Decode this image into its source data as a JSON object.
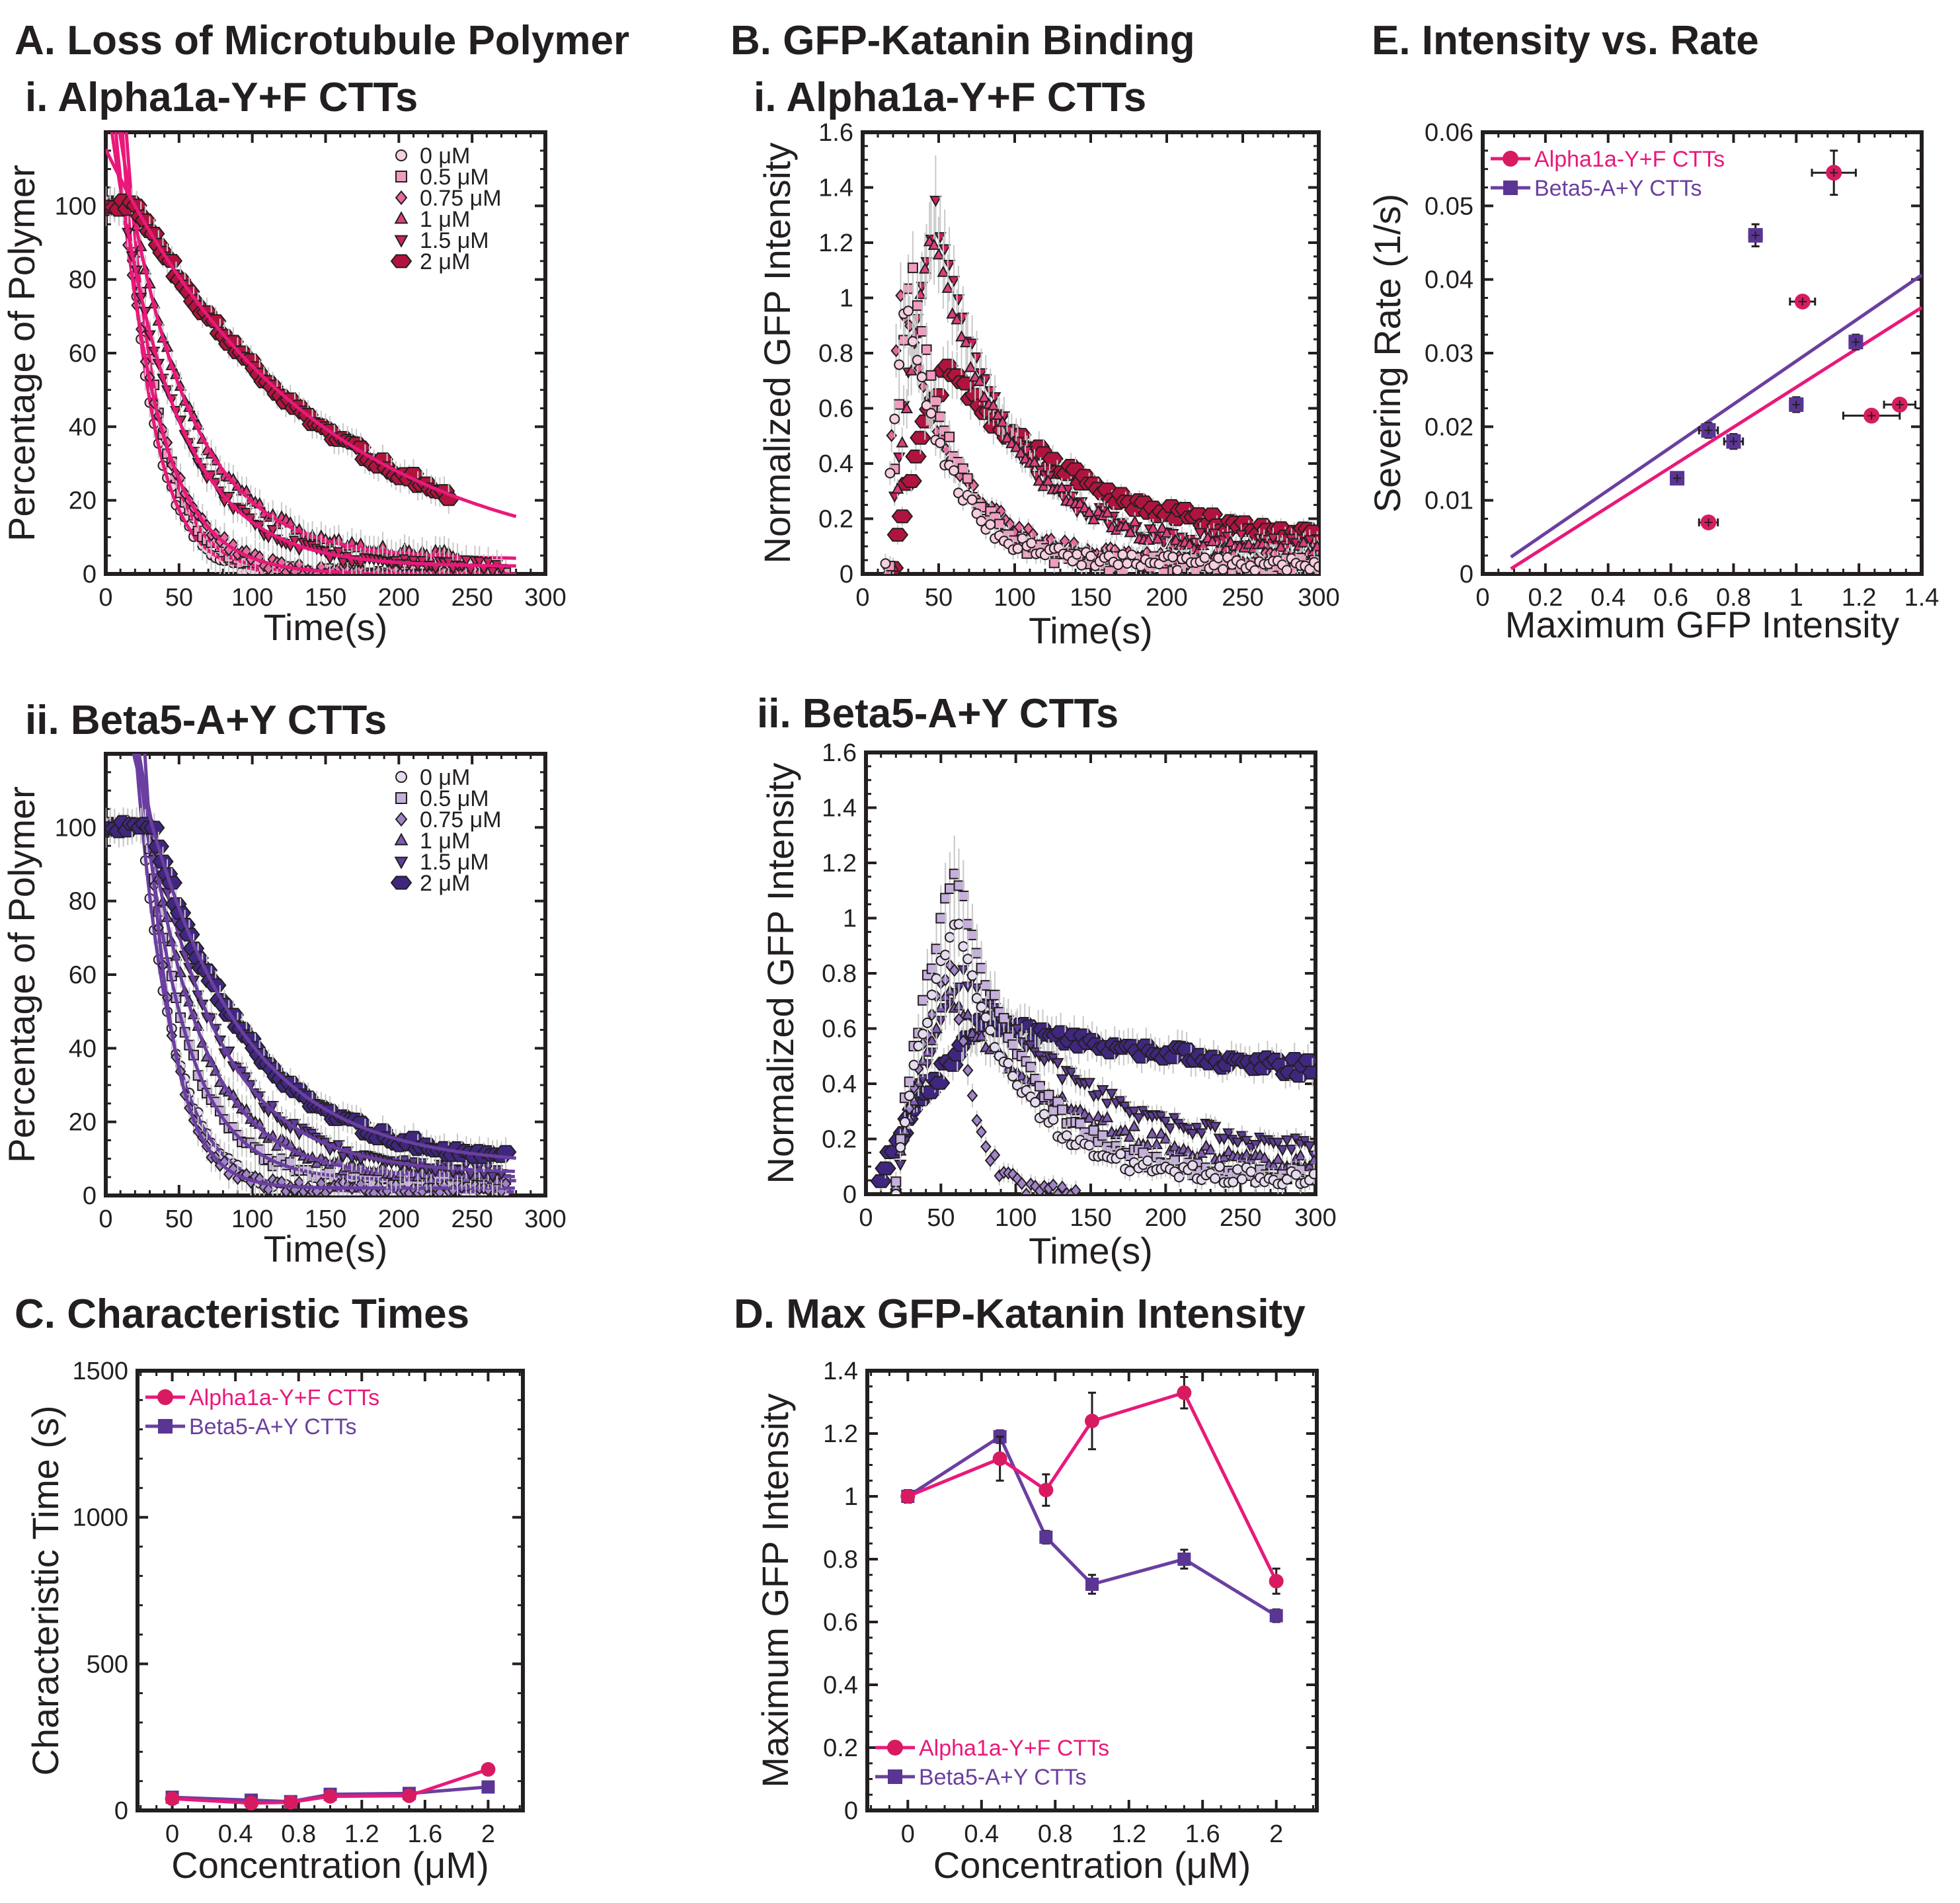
{
  "headings": {
    "A": "A. Loss of Microtubule Polymer",
    "Ai": "i. Alpha1a-Y+F CTTs",
    "Aii": "ii. Beta5-A+Y CTTs",
    "B": "B. GFP-Katanin Binding",
    "Bi": "i. Alpha1a-Y+F CTTs",
    "Bii": "ii. Beta5-A+Y CTTs",
    "C": "C. Characteristic Times",
    "D": "D. Max GFP-Katanin Intensity",
    "E": "E. Intensity vs. Rate"
  },
  "colors": {
    "alpha_line": "#e8197a",
    "beta_line": "#6a3fa0",
    "alpha_marker": "#d81b60",
    "beta_marker": "#5a3594",
    "alpha_shades": [
      "#f6cfe0",
      "#f09cc0",
      "#e56a9e",
      "#dd3f7e",
      "#cc2260",
      "#b0143e"
    ],
    "beta_shades": [
      "#e6dcef",
      "#c5afdc",
      "#a184c8",
      "#7f5cb1",
      "#5e3d98",
      "#3f2780"
    ],
    "error_bar": "#c8c8c8",
    "axis": "#231f20"
  },
  "chart_data": [
    {
      "id": "Ai",
      "type": "scatter",
      "title": "i. Alpha1a-Y+F CTTs",
      "xlabel": "Time(s)",
      "ylabel": "Percentage of Polymer",
      "xlim": [
        0,
        300
      ],
      "ylim": [
        0,
        120
      ],
      "xticks": [
        "0",
        "50",
        "100",
        "150",
        "200",
        "250",
        "300"
      ],
      "yticks": [
        "0",
        "20",
        "40",
        "60",
        "80",
        "100"
      ],
      "legend_position": "top-right",
      "series": [
        {
          "name": "0 μM",
          "marker": "circle",
          "tau": 20,
          "delay": 15,
          "tmax": 275,
          "plateau": 0
        },
        {
          "name": "0.5 μM",
          "marker": "square",
          "tau": 22,
          "delay": 18,
          "tmax": 275,
          "plateau": 0
        },
        {
          "name": "0.75 μM",
          "marker": "diamond",
          "tau": 28,
          "delay": 12,
          "tmax": 270,
          "plateau": 0
        },
        {
          "name": "1 μM",
          "marker": "triangle-up",
          "tau": 45,
          "delay": 18,
          "tmax": 240,
          "plateau": 4
        },
        {
          "name": "1.5 μM",
          "marker": "triangle-down",
          "tau": 42,
          "delay": 12,
          "tmax": 270,
          "plateau": 2
        },
        {
          "name": "2 μM",
          "marker": "hexagon",
          "tau": 140,
          "delay": 20,
          "tmax": 235,
          "plateau": 0
        }
      ]
    },
    {
      "id": "Aii",
      "type": "scatter",
      "title": "ii. Beta5-A+Y CTTs",
      "xlabel": "Time(s)",
      "ylabel": "Percentage of Polymer",
      "xlim": [
        0,
        300
      ],
      "ylim": [
        0,
        120
      ],
      "xticks": [
        "0",
        "50",
        "100",
        "150",
        "200",
        "250",
        "300"
      ],
      "yticks": [
        "0",
        "20",
        "40",
        "60",
        "80",
        "100"
      ],
      "legend_position": "top-right",
      "series": [
        {
          "name": "0 μM",
          "marker": "circle",
          "tau": 24,
          "delay": 25,
          "tmax": 275,
          "plateau": 1
        },
        {
          "name": "0.5 μM",
          "marker": "square",
          "tau": 30,
          "delay": 28,
          "tmax": 275,
          "plateau": 4
        },
        {
          "name": "0.75 μM",
          "marker": "diamond",
          "tau": 18,
          "delay": 30,
          "tmax": 275,
          "plateau": 2
        },
        {
          "name": "1 μM",
          "marker": "triangle-up",
          "tau": 38,
          "delay": 30,
          "tmax": 270,
          "plateau": 5
        },
        {
          "name": "1.5 μM",
          "marker": "triangle-down",
          "tau": 48,
          "delay": 32,
          "tmax": 270,
          "plateau": 6
        },
        {
          "name": "2 μM",
          "marker": "hexagon",
          "tau": 66,
          "delay": 32,
          "tmax": 275,
          "plateau": 8
        }
      ]
    },
    {
      "id": "Bi",
      "type": "scatter",
      "title": "i. Alpha1a-Y+F CTTs",
      "xlabel": "Time(s)",
      "ylabel": "Normalized GFP Intensity",
      "xlim": [
        0,
        300
      ],
      "ylim": [
        0,
        1.6
      ],
      "xticks": [
        "0",
        "50",
        "100",
        "150",
        "200",
        "250",
        "300"
      ],
      "yticks": [
        "0",
        "0.2",
        "0.4",
        "0.6",
        "0.8",
        "1",
        "1.2",
        "1.4",
        "1.6"
      ],
      "series": [
        {
          "name": "0 μM",
          "marker": "circle",
          "tpeak": 28,
          "peak": 1.0,
          "decay": 28,
          "base": 0.04,
          "tstart": 15,
          "tmax": 300
        },
        {
          "name": "0.5 μM",
          "marker": "square",
          "tpeak": 32,
          "peak": 1.12,
          "decay": 28,
          "base": 0.03,
          "tstart": 18,
          "tmax": 300
        },
        {
          "name": "0.75 μM",
          "marker": "diamond",
          "tpeak": 25,
          "peak": 1.03,
          "decay": 35,
          "base": 0.05,
          "tstart": 16,
          "tmax": 300
        },
        {
          "name": "1 μM",
          "marker": "triangle-up",
          "tpeak": 45,
          "peak": 1.24,
          "decay": 50,
          "base": 0.08,
          "tstart": 20,
          "tmax": 300
        },
        {
          "name": "1.5 μM",
          "marker": "triangle-down",
          "tpeak": 48,
          "peak": 1.33,
          "decay": 45,
          "base": 0.1,
          "tstart": 18,
          "tmax": 300
        },
        {
          "name": "2 μM",
          "marker": "hexagon",
          "tpeak": 55,
          "peak": 0.75,
          "decay": 95,
          "base": 0.08,
          "tstart": 20,
          "tmax": 300
        }
      ]
    },
    {
      "id": "Bii",
      "type": "scatter",
      "title": "ii. Beta5-A+Y CTTs",
      "xlabel": "Time(s)",
      "ylabel": "Normalized GFP Intensity",
      "xlim": [
        0,
        300
      ],
      "ylim": [
        0,
        1.6
      ],
      "xticks": [
        "0",
        "50",
        "100",
        "150",
        "200",
        "250",
        "300"
      ],
      "yticks": [
        "0",
        "0.2",
        "0.4",
        "0.6",
        "0.8",
        "1",
        "1.2",
        "1.4",
        "1.6"
      ],
      "series": [
        {
          "name": "0 μM",
          "marker": "circle",
          "tpeak": 60,
          "peak": 1.0,
          "decay": 40,
          "base": 0.06,
          "tstart": 20,
          "tmax": 300
        },
        {
          "name": "0.5 μM",
          "marker": "square",
          "tpeak": 60,
          "peak": 1.19,
          "decay": 45,
          "base": 0.06,
          "tstart": 20,
          "tmax": 300
        },
        {
          "name": "0.75 μM",
          "marker": "diamond",
          "tpeak": 58,
          "peak": 0.87,
          "decay": 14,
          "base": 0.0,
          "tstart": 20,
          "tmax": 140
        },
        {
          "name": "1 μM",
          "marker": "triangle-up",
          "tpeak": 55,
          "peak": 0.72,
          "decay": 80,
          "base": 0.08,
          "tstart": 20,
          "tmax": 300
        },
        {
          "name": "1.5 μM",
          "marker": "triangle-down",
          "tpeak": 65,
          "peak": 0.8,
          "decay": 90,
          "base": 0.12,
          "tstart": 20,
          "tmax": 300
        },
        {
          "name": "2 μM",
          "marker": "hexagon",
          "tpeak": 78,
          "peak": 0.62,
          "decay": 300,
          "base": 0.3,
          "tstart": 10,
          "tmax": 300
        }
      ]
    },
    {
      "id": "C",
      "type": "line",
      "xlabel": "Concentration (μM)",
      "ylabel": "Characteristic Time (s)",
      "xlim": [
        -0.22,
        2.22
      ],
      "ylim": [
        0,
        1500
      ],
      "xticks": [
        "0",
        "0.4",
        "0.8",
        "1.2",
        "1.6",
        "2"
      ],
      "yticks": [
        "0",
        "500",
        "1000",
        "1500"
      ],
      "legend_position": "top-left",
      "series": [
        {
          "name": "Alpha1a-Y+F CTTs",
          "marker": "circle",
          "x": [
            0,
            0.5,
            0.75,
            1,
            1.5,
            2
          ],
          "y": [
            40,
            25,
            28,
            48,
            50,
            140
          ],
          "err": [
            8,
            6,
            6,
            8,
            8,
            12
          ]
        },
        {
          "name": "Beta5-A+Y CTTs",
          "marker": "square",
          "x": [
            0,
            0.5,
            0.75,
            1,
            1.5,
            2
          ],
          "y": [
            45,
            35,
            30,
            55,
            58,
            80
          ],
          "err": [
            6,
            6,
            5,
            6,
            6,
            8
          ]
        }
      ]
    },
    {
      "id": "D",
      "type": "line",
      "xlabel": "Concentration (μM)",
      "ylabel": "Maximum GFP Intensity",
      "xlim": [
        -0.22,
        2.22
      ],
      "ylim": [
        0,
        1.4
      ],
      "xticks": [
        "0",
        "0.4",
        "0.8",
        "1.2",
        "1.6",
        "2"
      ],
      "yticks": [
        "0",
        "0.2",
        "0.4",
        "0.6",
        "0.8",
        "1",
        "1.2",
        "1.4"
      ],
      "legend_position": "bottom-left",
      "series": [
        {
          "name": "Alpha1a-Y+F CTTs",
          "marker": "circle",
          "x": [
            0,
            0.5,
            0.75,
            1,
            1.5,
            2
          ],
          "y": [
            1.0,
            1.12,
            1.02,
            1.24,
            1.33,
            0.73
          ],
          "err": [
            0,
            0.07,
            0.05,
            0.09,
            0.05,
            0.04
          ]
        },
        {
          "name": "Beta5-A+Y CTTs",
          "marker": "square",
          "x": [
            0,
            0.5,
            0.75,
            1,
            1.5,
            2
          ],
          "y": [
            1.0,
            1.19,
            0.87,
            0.72,
            0.8,
            0.62
          ],
          "err": [
            0.02,
            0.02,
            0.02,
            0.03,
            0.03,
            0.02
          ]
        }
      ]
    },
    {
      "id": "E",
      "type": "scatter",
      "xlabel": "Maximum GFP Intensity",
      "ylabel": "Severing Rate (1/s)",
      "xlim": [
        0,
        1.4
      ],
      "ylim": [
        0,
        0.06
      ],
      "xticks": [
        "0",
        "0.2",
        "0.4",
        "0.6",
        "0.8",
        "1",
        "1.2",
        "1.4"
      ],
      "yticks": [
        "0",
        "0.01",
        "0.02",
        "0.03",
        "0.04",
        "0.05",
        "0.06"
      ],
      "legend_position": "top-left",
      "series": [
        {
          "name": "Alpha1a-Y+F CTTs",
          "marker": "circle",
          "x": [
            0.72,
            1.02,
            1.12,
            1.24,
            1.33
          ],
          "y": [
            0.007,
            0.037,
            0.0545,
            0.0215,
            0.023
          ],
          "xerr": [
            0.03,
            0.04,
            0.07,
            0.09,
            0.05
          ],
          "yerr": [
            0.0006,
            0.0008,
            0.003,
            0.0007,
            0.0006
          ],
          "fit": {
            "x": [
              0.09,
              1.4
            ],
            "y": [
              0.0007,
              0.0362
            ]
          }
        },
        {
          "name": "Beta5-A+Y CTTs",
          "marker": "square",
          "x": [
            0.62,
            0.72,
            0.8,
            0.87,
            1.0,
            1.19
          ],
          "y": [
            0.013,
            0.0195,
            0.018,
            0.046,
            0.023,
            0.0315
          ],
          "xerr": [
            0.02,
            0.03,
            0.03,
            0.02,
            0.02,
            0.02
          ],
          "yerr": [
            0.0008,
            0.001,
            0.001,
            0.0015,
            0.001,
            0.001
          ],
          "fit": {
            "x": [
              0.09,
              1.4
            ],
            "y": [
              0.0023,
              0.0406
            ]
          }
        }
      ]
    }
  ]
}
